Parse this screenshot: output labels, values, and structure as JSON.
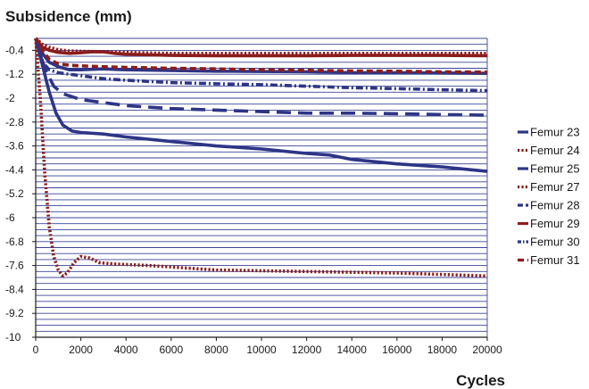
{
  "chart_data": {
    "type": "line",
    "title": "",
    "ylabel": "Subsidence (mm)",
    "xlabel": "Cycles",
    "xlim": [
      0,
      20000
    ],
    "ylim": [
      -10,
      0
    ],
    "x_ticks": [
      0,
      2000,
      4000,
      6000,
      8000,
      10000,
      12000,
      14000,
      16000,
      18000,
      20000
    ],
    "y_ticks": [
      -0.4,
      -1.2,
      -2,
      -2.8,
      -3.6,
      -4.4,
      -5.2,
      -6,
      -6.8,
      -7.6,
      -8.4,
      -9.2,
      -10
    ],
    "grid": true,
    "legend_position": "right",
    "series": [
      {
        "name": "Femur 23",
        "color": "#2e3586",
        "dash": "solid",
        "x": [
          0,
          300,
          600,
          900,
          1200,
          1600,
          2000,
          3000,
          4000,
          6000,
          8000,
          10000,
          12000,
          13000,
          14000,
          16000,
          18000,
          20000
        ],
        "y": [
          0,
          -0.9,
          -1.8,
          -2.5,
          -2.9,
          -3.1,
          -3.15,
          -3.2,
          -3.3,
          -3.45,
          -3.6,
          -3.7,
          -3.85,
          -3.9,
          -4.05,
          -4.2,
          -4.3,
          -4.45
        ]
      },
      {
        "name": "Femur 24",
        "color": "#8b1d1d",
        "dash": "dot",
        "x": [
          0,
          200,
          400,
          600,
          800,
          1000,
          1200,
          1400,
          1700,
          2000,
          2400,
          2800,
          3500,
          5000,
          8000,
          12000,
          16000,
          20000
        ],
        "y": [
          0,
          -2,
          -4.5,
          -6.3,
          -7.3,
          -7.75,
          -7.95,
          -7.85,
          -7.5,
          -7.3,
          -7.35,
          -7.5,
          -7.55,
          -7.6,
          -7.75,
          -7.8,
          -7.85,
          -7.95
        ]
      },
      {
        "name": "Femur 25",
        "color": "#2e3586",
        "dash": "solid",
        "x": [
          0,
          300,
          600,
          1000,
          1500,
          2000,
          3000,
          4000,
          8000,
          12000,
          14000,
          16000,
          20000
        ],
        "y": [
          0,
          -0.5,
          -0.8,
          -0.95,
          -1.05,
          -1.05,
          -1.02,
          -1.05,
          -1.1,
          -1.12,
          -1.15,
          -1.15,
          -1.17
        ]
      },
      {
        "name": "Femur 27",
        "color": "#8b1d1d",
        "dash": "dot",
        "x": [
          0,
          300,
          600,
          1000,
          1500,
          2000,
          3000,
          4000,
          6000,
          8000,
          12000,
          16000,
          20000
        ],
        "y": [
          0,
          -0.2,
          -0.3,
          -0.38,
          -0.42,
          -0.43,
          -0.45,
          -0.47,
          -0.5,
          -0.5,
          -0.5,
          -0.5,
          -0.5
        ]
      },
      {
        "name": "Femur 28",
        "color": "#2e3586",
        "dash": "longdash",
        "x": [
          0,
          400,
          800,
          1200,
          1600,
          2000,
          3000,
          4000,
          6000,
          8000,
          10000,
          12000,
          14000,
          16000,
          18000,
          20000
        ],
        "y": [
          0,
          -1.0,
          -1.6,
          -1.85,
          -1.95,
          -2.05,
          -2.15,
          -2.25,
          -2.35,
          -2.4,
          -2.45,
          -2.5,
          -2.5,
          -2.52,
          -2.55,
          -2.57
        ]
      },
      {
        "name": "Femur 29",
        "color": "#8b1d1d",
        "dash": "solid",
        "x": [
          0,
          300,
          600,
          1000,
          1500,
          2000,
          2500,
          3000,
          3500,
          4000,
          6000,
          8000,
          10000,
          12000,
          14000,
          16000,
          18000,
          20000
        ],
        "y": [
          0,
          -0.3,
          -0.4,
          -0.47,
          -0.5,
          -0.48,
          -0.45,
          -0.45,
          -0.5,
          -0.53,
          -0.57,
          -0.58,
          -0.58,
          -0.58,
          -0.57,
          -0.57,
          -0.57,
          -0.58
        ]
      },
      {
        "name": "Femur 30",
        "color": "#2e3586",
        "dash": "dashdot",
        "x": [
          0,
          300,
          600,
          1000,
          1500,
          2000,
          3000,
          4000,
          6000,
          8000,
          10000,
          12000,
          14000,
          16000,
          18000,
          20000
        ],
        "y": [
          0,
          -0.8,
          -1.05,
          -1.15,
          -1.2,
          -1.25,
          -1.35,
          -1.4,
          -1.48,
          -1.52,
          -1.55,
          -1.6,
          -1.65,
          -1.68,
          -1.72,
          -1.75
        ]
      },
      {
        "name": "Femur 31",
        "color": "#8b1d1d",
        "dash": "dash",
        "x": [
          0,
          300,
          600,
          1000,
          1500,
          2000,
          3000,
          4000,
          6000,
          8000,
          10000,
          12000,
          14000,
          16000,
          18000,
          20000
        ],
        "y": [
          0,
          -0.4,
          -0.7,
          -0.85,
          -0.9,
          -0.92,
          -0.95,
          -0.97,
          -1.0,
          -1.02,
          -1.05,
          -1.07,
          -1.09,
          -1.1,
          -1.12,
          -1.13
        ]
      }
    ]
  }
}
